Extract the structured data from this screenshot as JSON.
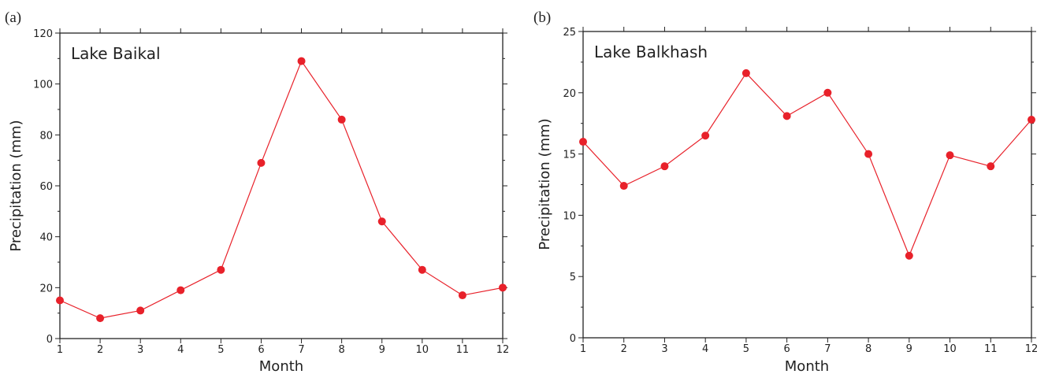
{
  "chart_data": [
    {
      "type": "line",
      "panel": "(a)",
      "title": "Lake Baikal",
      "xlabel": "Month",
      "ylabel": "Precipitation (mm)",
      "x": [
        1,
        2,
        3,
        4,
        5,
        6,
        7,
        8,
        9,
        10,
        11,
        12
      ],
      "series": [
        {
          "values": [
            15,
            8,
            11,
            19,
            27,
            69,
            109,
            86,
            46,
            27,
            17,
            20
          ]
        }
      ],
      "xlim": [
        1,
        12
      ],
      "ylim": [
        0,
        120
      ],
      "yticks": [
        0,
        20,
        40,
        60,
        80,
        100,
        120
      ],
      "xticks": [
        1,
        2,
        3,
        4,
        5,
        6,
        7,
        8,
        9,
        10,
        11,
        12
      ],
      "color": "#e8212a",
      "grid": false
    },
    {
      "type": "line",
      "panel": "(b)",
      "title": "Lake Balkhash",
      "xlabel": "Month",
      "ylabel": "Precipitation (mm)",
      "x": [
        1,
        2,
        3,
        4,
        5,
        6,
        7,
        8,
        9,
        10,
        11,
        12
      ],
      "series": [
        {
          "values": [
            16,
            12.4,
            14,
            16.5,
            21.6,
            18.1,
            20,
            15,
            6.7,
            14.9,
            14,
            17.8
          ]
        }
      ],
      "xlim": [
        1,
        12
      ],
      "ylim": [
        0,
        25
      ],
      "yticks": [
        0,
        5,
        10,
        15,
        20,
        25
      ],
      "xticks": [
        1,
        2,
        3,
        4,
        5,
        6,
        7,
        8,
        9,
        10,
        11,
        12
      ],
      "color": "#e8212a",
      "grid": false
    }
  ]
}
